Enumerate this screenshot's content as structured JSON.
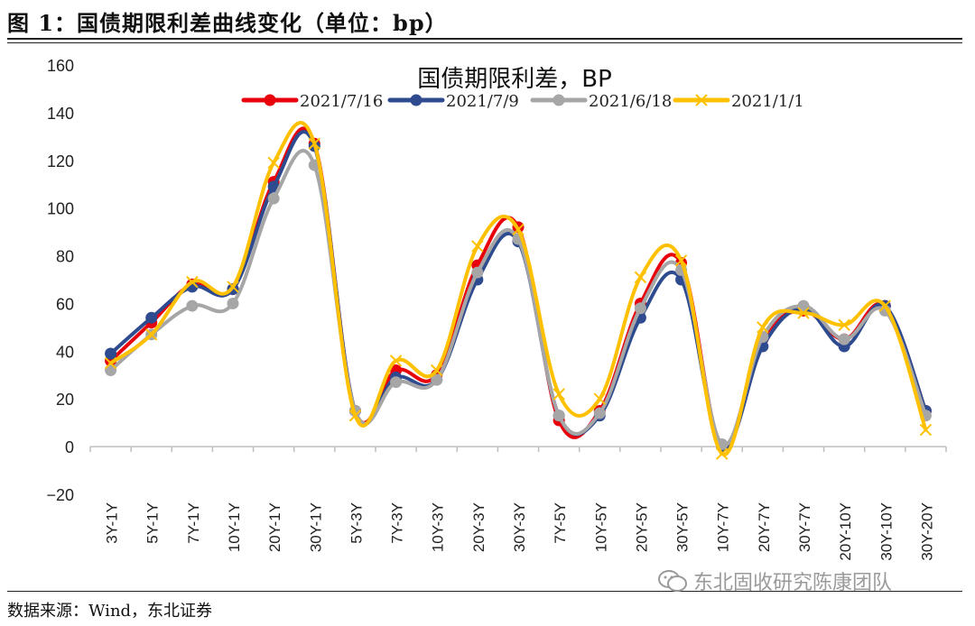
{
  "figure": {
    "title": "图 1：国债期限利差曲线变化（单位：bp）",
    "source": "数据来源：Wind，东北证券",
    "watermark": "东北固收研究陈康团队"
  },
  "chart_data": {
    "type": "line",
    "title": "国债期限利差，BP",
    "xlabel": "",
    "ylabel": "",
    "ylim": [
      -20,
      160
    ],
    "yticks": [
      -20,
      0,
      20,
      40,
      60,
      80,
      100,
      120,
      140,
      160
    ],
    "legend_position": "top",
    "categories": [
      "3Y-1Y",
      "5Y-1Y",
      "7Y-1Y",
      "10Y-1Y",
      "20Y-1Y",
      "30Y-1Y",
      "5Y-3Y",
      "7Y-3Y",
      "10Y-3Y",
      "20Y-3Y",
      "30Y-3Y",
      "7Y-5Y",
      "10Y-5Y",
      "20Y-5Y",
      "30Y-5Y",
      "10Y-7Y",
      "20Y-7Y",
      "30Y-7Y",
      "20Y-10Y",
      "30Y-10Y",
      "30Y-20Y"
    ],
    "series": [
      {
        "name": "2021/7/16",
        "color": "#e8000b",
        "marker": "circle",
        "values": [
          36,
          52,
          68,
          66,
          111,
          127,
          15,
          32,
          30,
          76,
          92,
          11,
          15,
          60,
          77,
          0,
          45,
          57,
          45,
          59,
          15
        ]
      },
      {
        "name": "2021/7/9",
        "color": "#2f4b8f",
        "marker": "circle",
        "values": [
          39,
          54,
          67,
          66,
          109,
          126,
          15,
          29,
          28,
          70,
          86,
          13,
          13,
          54,
          70,
          0,
          42,
          58,
          42,
          59,
          15
        ]
      },
      {
        "name": "2021/6/18",
        "color": "#a6a6a6",
        "marker": "circle",
        "values": [
          32,
          47,
          59,
          60,
          104,
          118,
          15,
          27,
          28,
          73,
          87,
          13,
          14,
          58,
          74,
          1,
          46,
          59,
          45,
          57,
          13
        ]
      },
      {
        "name": "2021/1/1",
        "color": "#ffc000",
        "marker": "x",
        "values": [
          35,
          47,
          69,
          67,
          119,
          127,
          13,
          36,
          32,
          84,
          91,
          22,
          20,
          71,
          78,
          -3,
          50,
          56,
          51,
          59,
          7
        ]
      }
    ]
  }
}
